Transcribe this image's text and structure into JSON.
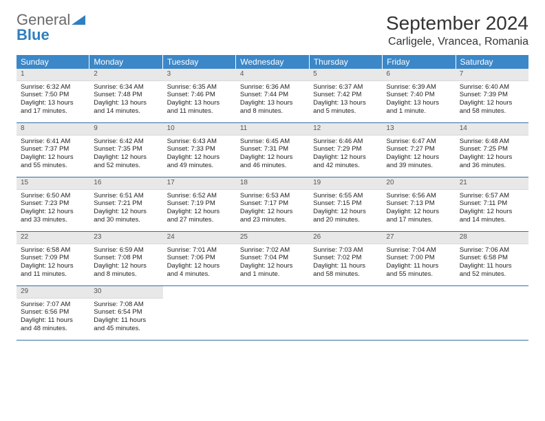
{
  "logo": {
    "text1": "General",
    "text2": "Blue"
  },
  "title": "September 2024",
  "location": "Carligele, Vrancea, Romania",
  "colors": {
    "header_bg": "#3b87c8",
    "header_text": "#ffffff",
    "daynum_bg": "#e8e8e8",
    "rule": "#2f6fa8",
    "logo_gray": "#6a6a6a",
    "logo_blue": "#2f7fc1"
  },
  "weekdays": [
    "Sunday",
    "Monday",
    "Tuesday",
    "Wednesday",
    "Thursday",
    "Friday",
    "Saturday"
  ],
  "weeks": [
    [
      {
        "n": "1",
        "sr": "Sunrise: 6:32 AM",
        "ss": "Sunset: 7:50 PM",
        "dl": "Daylight: 13 hours and 17 minutes."
      },
      {
        "n": "2",
        "sr": "Sunrise: 6:34 AM",
        "ss": "Sunset: 7:48 PM",
        "dl": "Daylight: 13 hours and 14 minutes."
      },
      {
        "n": "3",
        "sr": "Sunrise: 6:35 AM",
        "ss": "Sunset: 7:46 PM",
        "dl": "Daylight: 13 hours and 11 minutes."
      },
      {
        "n": "4",
        "sr": "Sunrise: 6:36 AM",
        "ss": "Sunset: 7:44 PM",
        "dl": "Daylight: 13 hours and 8 minutes."
      },
      {
        "n": "5",
        "sr": "Sunrise: 6:37 AM",
        "ss": "Sunset: 7:42 PM",
        "dl": "Daylight: 13 hours and 5 minutes."
      },
      {
        "n": "6",
        "sr": "Sunrise: 6:39 AM",
        "ss": "Sunset: 7:40 PM",
        "dl": "Daylight: 13 hours and 1 minute."
      },
      {
        "n": "7",
        "sr": "Sunrise: 6:40 AM",
        "ss": "Sunset: 7:39 PM",
        "dl": "Daylight: 12 hours and 58 minutes."
      }
    ],
    [
      {
        "n": "8",
        "sr": "Sunrise: 6:41 AM",
        "ss": "Sunset: 7:37 PM",
        "dl": "Daylight: 12 hours and 55 minutes."
      },
      {
        "n": "9",
        "sr": "Sunrise: 6:42 AM",
        "ss": "Sunset: 7:35 PM",
        "dl": "Daylight: 12 hours and 52 minutes."
      },
      {
        "n": "10",
        "sr": "Sunrise: 6:43 AM",
        "ss": "Sunset: 7:33 PM",
        "dl": "Daylight: 12 hours and 49 minutes."
      },
      {
        "n": "11",
        "sr": "Sunrise: 6:45 AM",
        "ss": "Sunset: 7:31 PM",
        "dl": "Daylight: 12 hours and 46 minutes."
      },
      {
        "n": "12",
        "sr": "Sunrise: 6:46 AM",
        "ss": "Sunset: 7:29 PM",
        "dl": "Daylight: 12 hours and 42 minutes."
      },
      {
        "n": "13",
        "sr": "Sunrise: 6:47 AM",
        "ss": "Sunset: 7:27 PM",
        "dl": "Daylight: 12 hours and 39 minutes."
      },
      {
        "n": "14",
        "sr": "Sunrise: 6:48 AM",
        "ss": "Sunset: 7:25 PM",
        "dl": "Daylight: 12 hours and 36 minutes."
      }
    ],
    [
      {
        "n": "15",
        "sr": "Sunrise: 6:50 AM",
        "ss": "Sunset: 7:23 PM",
        "dl": "Daylight: 12 hours and 33 minutes."
      },
      {
        "n": "16",
        "sr": "Sunrise: 6:51 AM",
        "ss": "Sunset: 7:21 PM",
        "dl": "Daylight: 12 hours and 30 minutes."
      },
      {
        "n": "17",
        "sr": "Sunrise: 6:52 AM",
        "ss": "Sunset: 7:19 PM",
        "dl": "Daylight: 12 hours and 27 minutes."
      },
      {
        "n": "18",
        "sr": "Sunrise: 6:53 AM",
        "ss": "Sunset: 7:17 PM",
        "dl": "Daylight: 12 hours and 23 minutes."
      },
      {
        "n": "19",
        "sr": "Sunrise: 6:55 AM",
        "ss": "Sunset: 7:15 PM",
        "dl": "Daylight: 12 hours and 20 minutes."
      },
      {
        "n": "20",
        "sr": "Sunrise: 6:56 AM",
        "ss": "Sunset: 7:13 PM",
        "dl": "Daylight: 12 hours and 17 minutes."
      },
      {
        "n": "21",
        "sr": "Sunrise: 6:57 AM",
        "ss": "Sunset: 7:11 PM",
        "dl": "Daylight: 12 hours and 14 minutes."
      }
    ],
    [
      {
        "n": "22",
        "sr": "Sunrise: 6:58 AM",
        "ss": "Sunset: 7:09 PM",
        "dl": "Daylight: 12 hours and 11 minutes."
      },
      {
        "n": "23",
        "sr": "Sunrise: 6:59 AM",
        "ss": "Sunset: 7:08 PM",
        "dl": "Daylight: 12 hours and 8 minutes."
      },
      {
        "n": "24",
        "sr": "Sunrise: 7:01 AM",
        "ss": "Sunset: 7:06 PM",
        "dl": "Daylight: 12 hours and 4 minutes."
      },
      {
        "n": "25",
        "sr": "Sunrise: 7:02 AM",
        "ss": "Sunset: 7:04 PM",
        "dl": "Daylight: 12 hours and 1 minute."
      },
      {
        "n": "26",
        "sr": "Sunrise: 7:03 AM",
        "ss": "Sunset: 7:02 PM",
        "dl": "Daylight: 11 hours and 58 minutes."
      },
      {
        "n": "27",
        "sr": "Sunrise: 7:04 AM",
        "ss": "Sunset: 7:00 PM",
        "dl": "Daylight: 11 hours and 55 minutes."
      },
      {
        "n": "28",
        "sr": "Sunrise: 7:06 AM",
        "ss": "Sunset: 6:58 PM",
        "dl": "Daylight: 11 hours and 52 minutes."
      }
    ],
    [
      {
        "n": "29",
        "sr": "Sunrise: 7:07 AM",
        "ss": "Sunset: 6:56 PM",
        "dl": "Daylight: 11 hours and 48 minutes."
      },
      {
        "n": "30",
        "sr": "Sunrise: 7:08 AM",
        "ss": "Sunset: 6:54 PM",
        "dl": "Daylight: 11 hours and 45 minutes."
      },
      null,
      null,
      null,
      null,
      null
    ]
  ]
}
